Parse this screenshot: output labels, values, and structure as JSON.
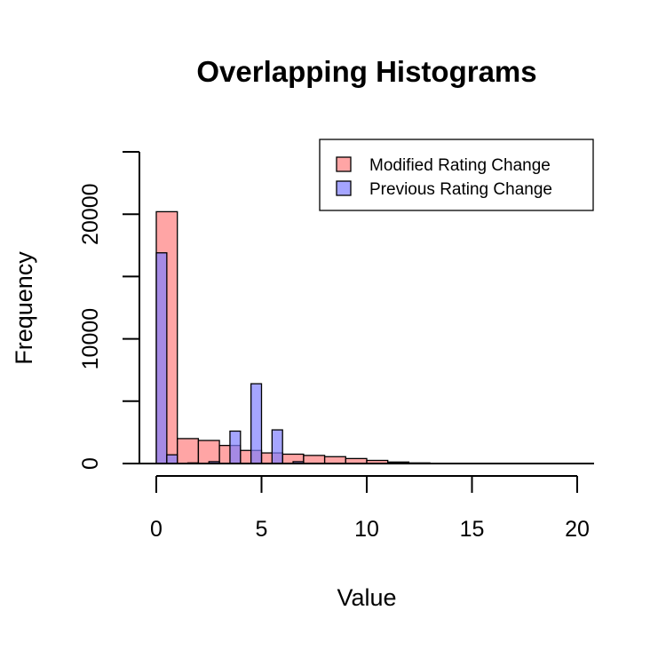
{
  "chart_data": {
    "type": "bar",
    "title": "Overlapping Histograms",
    "xlabel": "Value",
    "ylabel": "Frequency",
    "xlim": [
      0,
      20
    ],
    "ylim": [
      0,
      25000
    ],
    "x_ticks": [
      0,
      5,
      10,
      15,
      20
    ],
    "x_tick_labels": [
      "0",
      "5",
      "10",
      "15",
      "20"
    ],
    "y_ticks": [
      0,
      5000,
      10000,
      15000,
      20000,
      25000
    ],
    "y_tick_labels": [
      "0",
      "",
      "10000",
      "",
      "20000",
      ""
    ],
    "legend_position": "top-right",
    "series": [
      {
        "name": "Modified Rating Change",
        "color": "#FF7F7F",
        "bin_width": 1,
        "bins": [
          {
            "x0": 0,
            "x1": 1,
            "count": 20200
          },
          {
            "x0": 1,
            "x1": 2,
            "count": 2000
          },
          {
            "x0": 2,
            "x1": 3,
            "count": 1850
          },
          {
            "x0": 3,
            "x1": 4,
            "count": 1450
          },
          {
            "x0": 4,
            "x1": 5,
            "count": 1050
          },
          {
            "x0": 5,
            "x1": 6,
            "count": 850
          },
          {
            "x0": 6,
            "x1": 7,
            "count": 750
          },
          {
            "x0": 7,
            "x1": 8,
            "count": 650
          },
          {
            "x0": 8,
            "x1": 9,
            "count": 550
          },
          {
            "x0": 9,
            "x1": 10,
            "count": 400
          },
          {
            "x0": 10,
            "x1": 11,
            "count": 250
          },
          {
            "x0": 11,
            "x1": 12,
            "count": 120
          },
          {
            "x0": 12,
            "x1": 13,
            "count": 50
          },
          {
            "x0": 13,
            "x1": 14,
            "count": 20
          },
          {
            "x0": 14,
            "x1": 15,
            "count": 10
          },
          {
            "x0": 15,
            "x1": 16,
            "count": 5
          },
          {
            "x0": 16,
            "x1": 17,
            "count": 3
          },
          {
            "x0": 17,
            "x1": 18,
            "count": 2
          },
          {
            "x0": 18,
            "x1": 19,
            "count": 1
          },
          {
            "x0": 19,
            "x1": 20,
            "count": 1
          }
        ]
      },
      {
        "name": "Previous Rating Change",
        "color": "#7F7FFF",
        "bin_width": 0.5,
        "bins": [
          {
            "x0": 0,
            "x1": 0.5,
            "count": 16900
          },
          {
            "x0": 0.5,
            "x1": 1,
            "count": 700
          },
          {
            "x0": 1,
            "x1": 1.5,
            "count": 0
          },
          {
            "x0": 1.5,
            "x1": 2,
            "count": 50
          },
          {
            "x0": 2,
            "x1": 2.5,
            "count": 0
          },
          {
            "x0": 2.5,
            "x1": 3,
            "count": 150
          },
          {
            "x0": 3,
            "x1": 3.5,
            "count": 0
          },
          {
            "x0": 3.5,
            "x1": 4,
            "count": 2600
          },
          {
            "x0": 4,
            "x1": 4.5,
            "count": 0
          },
          {
            "x0": 4.5,
            "x1": 5,
            "count": 6400
          },
          {
            "x0": 5,
            "x1": 5.5,
            "count": 0
          },
          {
            "x0": 5.5,
            "x1": 6,
            "count": 2700
          },
          {
            "x0": 6,
            "x1": 6.5,
            "count": 0
          },
          {
            "x0": 6.5,
            "x1": 7,
            "count": 150
          }
        ]
      }
    ]
  }
}
